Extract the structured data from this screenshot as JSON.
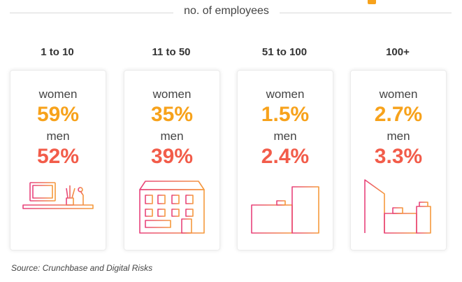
{
  "heading": "no. of employees",
  "accent_color": "#f7a21b",
  "women_color": "#f7a21b",
  "men_color": "#f25c4a",
  "groups": [
    {
      "label": "1 to 10",
      "women_label": "women",
      "women": "59%",
      "men_label": "men",
      "men": "52%",
      "icon": "desk-computer-icon"
    },
    {
      "label": "11 to 50",
      "women_label": "women",
      "women": "35%",
      "men_label": "men",
      "men": "39%",
      "icon": "small-building-icon"
    },
    {
      "label": "51 to 100",
      "women_label": "women",
      "women": "1.5%",
      "men_label": "men",
      "men": "2.4%",
      "icon": "office-buildings-icon"
    },
    {
      "label": "100+",
      "women_label": "women",
      "women": "2.7%",
      "men_label": "men",
      "men": "3.3%",
      "icon": "skyscrapers-icon"
    }
  ],
  "source": "Source: Crunchbase and Digital Risks"
}
